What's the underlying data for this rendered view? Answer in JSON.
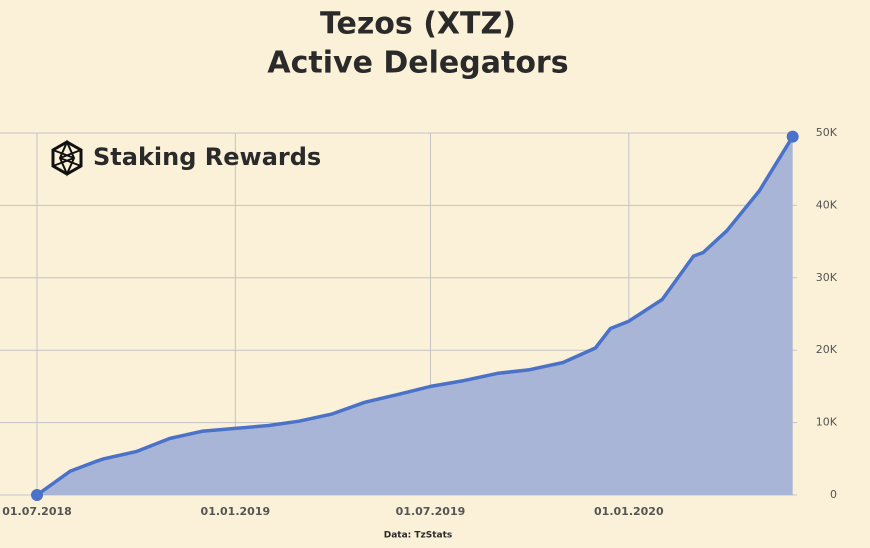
{
  "chart_data": {
    "type": "area",
    "title": [
      "Tezos (XTZ)",
      "Active Delegators"
    ],
    "brand": "Staking Rewards",
    "source": "Data: TzStats",
    "x": [
      "01.07.2018",
      "01.08.2018",
      "24.08.2018",
      "01.09.2018",
      "01.10.2018",
      "01.11.2018",
      "01.12.2018",
      "01.01.2019",
      "01.02.2019",
      "01.03.2019",
      "01.04.2019",
      "01.05.2019",
      "01.06.2019",
      "01.07.2019",
      "01.08.2019",
      "01.09.2019",
      "01.10.2019",
      "01.11.2019",
      "01.12.2019",
      "15.12.2019",
      "01.01.2020",
      "01.02.2020",
      "01.03.2020",
      "10.03.2020",
      "01.04.2020",
      "01.05.2020",
      "01.06.2020"
    ],
    "series": [
      {
        "name": "Active Delegators",
        "color": "#4a72c9",
        "fill": "#a9b5d6",
        "values": [
          0,
          3300,
          4600,
          5000,
          6000,
          7800,
          8800,
          9200,
          9600,
          10200,
          11200,
          12800,
          13900,
          15000,
          15800,
          16800,
          17300,
          18300,
          20300,
          23000,
          24000,
          27000,
          33000,
          33500,
          36500,
          42000,
          49500
        ]
      }
    ],
    "xlim": [
      "01.07.2018",
      "05.06.2020"
    ],
    "xticks": [
      "01.07.2018",
      "01.01.2019",
      "01.07.2019",
      "01.01.2020"
    ],
    "ylim": [
      0,
      50000
    ],
    "yticks": [
      0,
      {
        "value": 10000,
        "label": "10K"
      },
      {
        "value": 20000,
        "label": "20K"
      },
      {
        "value": 30000,
        "label": "30K"
      },
      {
        "value": 40000,
        "label": "40K"
      },
      {
        "value": 50000,
        "label": "50K"
      }
    ],
    "grid": true
  }
}
